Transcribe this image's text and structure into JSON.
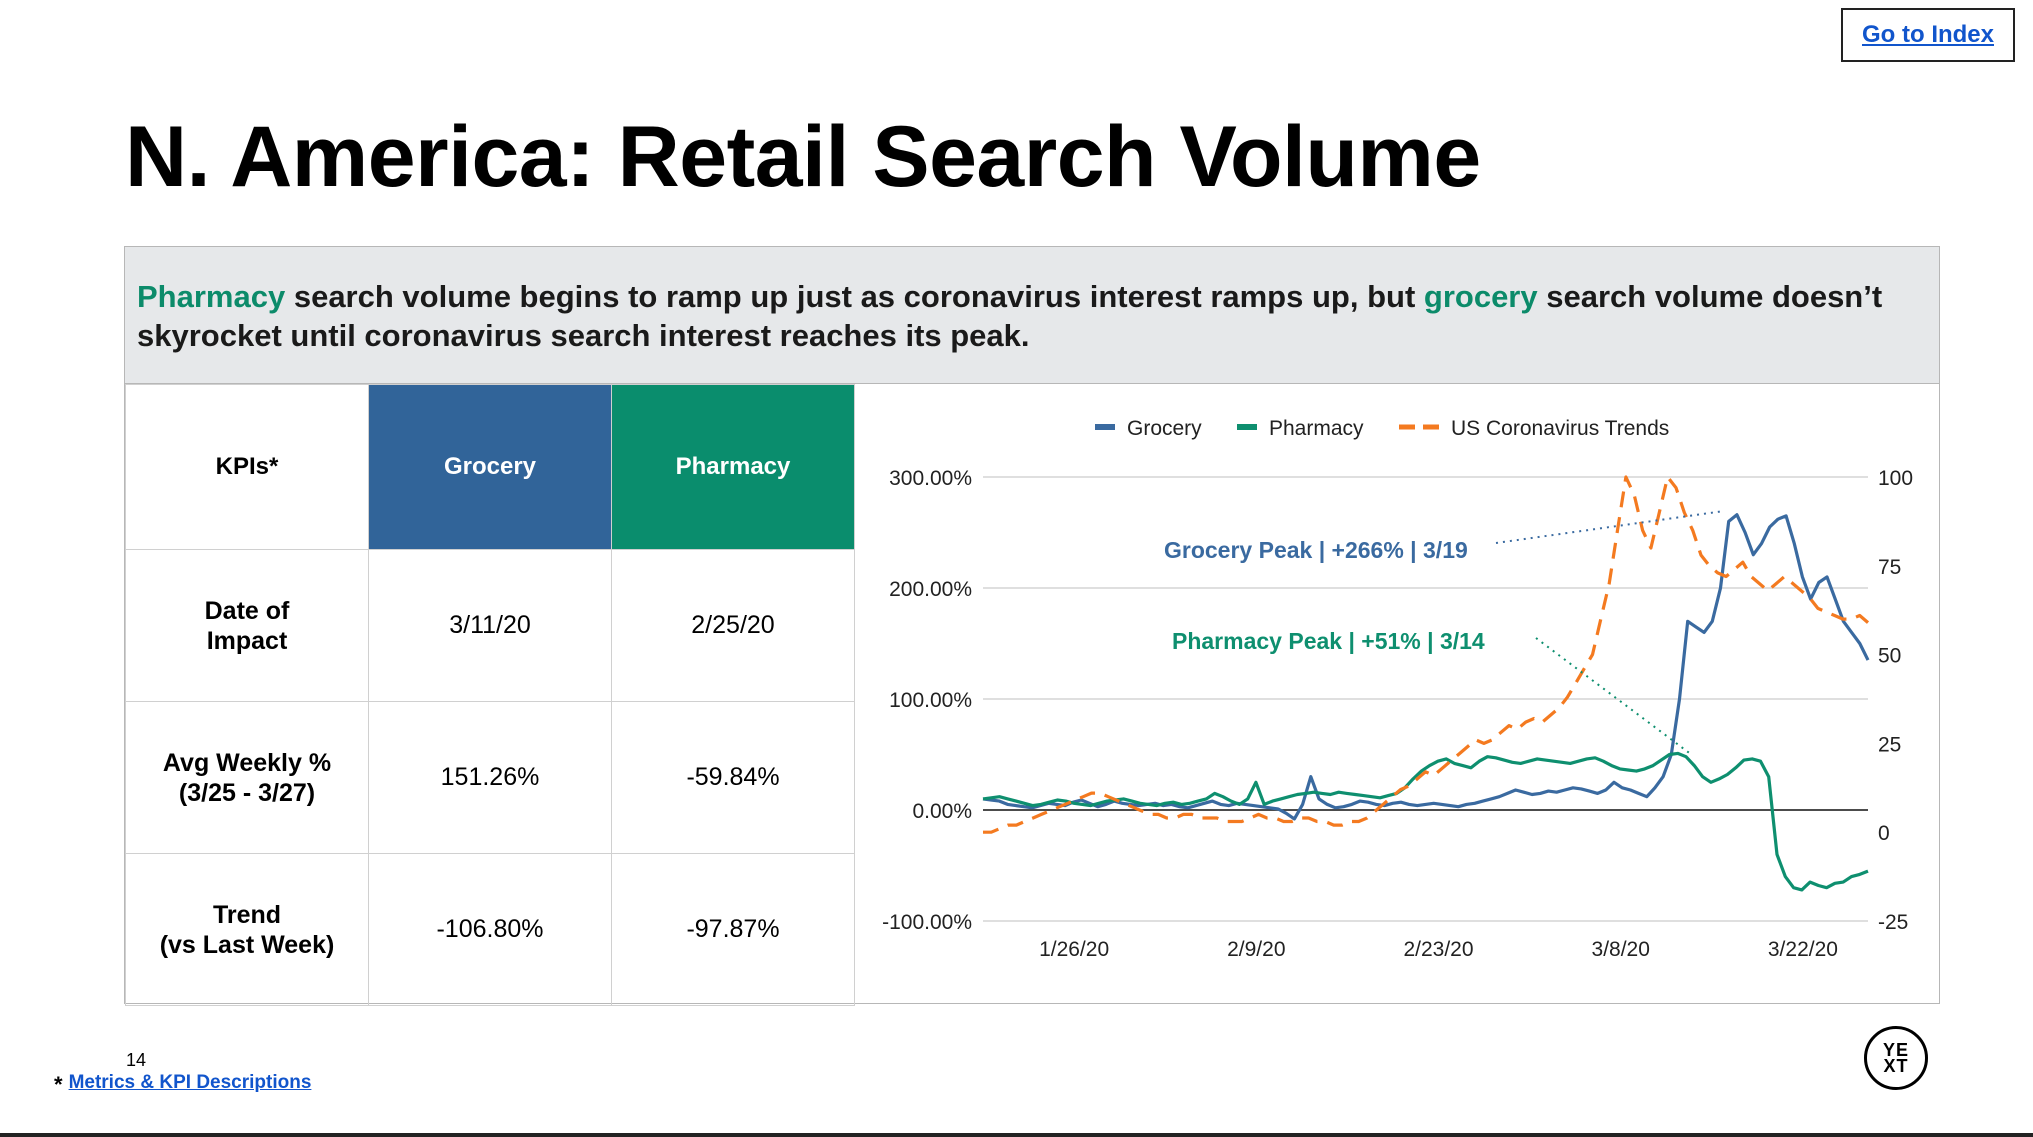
{
  "header": {
    "go_index": "Go to Index",
    "title": "N. America: Retail Search Volume"
  },
  "banner": {
    "part1": "Pharmacy",
    "part2": " search volume begins to ramp up just as coronavirus interest ramps up, but ",
    "part3": "grocery",
    "part4": " search volume doesn’t skyrocket until coronavirus search interest reaches its peak."
  },
  "kpi_table": {
    "headers": [
      "KPIs*",
      "Grocery",
      "Pharmacy"
    ],
    "rows": [
      {
        "label_line1": "Date of",
        "label_line2": "Impact",
        "grocery": "3/11/20",
        "pharmacy": "2/25/20"
      },
      {
        "label_line1": "Avg Weekly %",
        "label_line2": "(3/25 - 3/27)",
        "grocery": "151.26%",
        "pharmacy": "-59.84%"
      },
      {
        "label_line1": "Trend",
        "label_line2": "(vs Last Week)",
        "grocery": "-106.80%",
        "pharmacy": "-97.87%"
      }
    ]
  },
  "colors": {
    "grocery": "#3a6aa0",
    "pharmacy": "#0e8f6f",
    "trends": "#f47a20",
    "banner_bg": "#e6e8ea"
  },
  "chart_data": {
    "type": "line",
    "x_ticks": [
      "1/26/20",
      "2/9/20",
      "2/23/20",
      "3/8/20",
      "3/22/20"
    ],
    "x_range": [
      "1/19/20",
      "3/27/20"
    ],
    "y_left": {
      "ticks": [
        "300.00%",
        "200.00%",
        "100.00%",
        "0.00%",
        "-100.00%"
      ],
      "range": [
        -100,
        300
      ]
    },
    "y_right": {
      "ticks": [
        "100",
        "75",
        "50",
        "25",
        "0",
        "-25"
      ],
      "range": [
        -25,
        100
      ]
    },
    "legend": [
      "Grocery",
      "Pharmacy",
      "US Coronavirus Trends"
    ],
    "legend_position": "top",
    "grid": true,
    "annotations": [
      "Grocery Peak | +266% | 3/19",
      "Pharmacy Peak | +51% | 3/14"
    ],
    "series": [
      {
        "name": "Grocery",
        "axis": "left",
        "style": "solid",
        "values": [
          10,
          9,
          8,
          5,
          4,
          3,
          2,
          4,
          6,
          5,
          4,
          7,
          9,
          6,
          3,
          5,
          8,
          6,
          5,
          4,
          5,
          6,
          4,
          5,
          3,
          2,
          4,
          6,
          8,
          5,
          4,
          6,
          5,
          4,
          3,
          2,
          1,
          -3,
          -8,
          5,
          30,
          10,
          5,
          2,
          3,
          5,
          8,
          7,
          5,
          4,
          6,
          7,
          5,
          4,
          5,
          6,
          5,
          4,
          3,
          5,
          6,
          8,
          10,
          12,
          15,
          18,
          16,
          14,
          15,
          17,
          16,
          18,
          20,
          19,
          17,
          15,
          18,
          25,
          20,
          18,
          15,
          12,
          20,
          30,
          50,
          100,
          170,
          165,
          160,
          170,
          200,
          260,
          266,
          250,
          230,
          240,
          255,
          262,
          265,
          240,
          210,
          190,
          205,
          210,
          190,
          170,
          160,
          150,
          135
        ]
      },
      {
        "name": "Pharmacy",
        "axis": "left",
        "style": "solid",
        "values": [
          10,
          11,
          12,
          10,
          8,
          6,
          4,
          5,
          7,
          9,
          8,
          6,
          5,
          4,
          6,
          8,
          9,
          10,
          8,
          6,
          5,
          4,
          6,
          7,
          5,
          6,
          8,
          10,
          15,
          12,
          8,
          5,
          10,
          25,
          5,
          8,
          10,
          12,
          14,
          15,
          16,
          15,
          14,
          16,
          15,
          14,
          13,
          12,
          11,
          13,
          15,
          20,
          28,
          35,
          40,
          44,
          46,
          42,
          40,
          38,
          44,
          48,
          47,
          45,
          43,
          42,
          44,
          46,
          45,
          44,
          43,
          42,
          44,
          46,
          47,
          44,
          40,
          37,
          36,
          35,
          37,
          40,
          45,
          50,
          51,
          48,
          40,
          30,
          25,
          28,
          32,
          38,
          45,
          46,
          44,
          30,
          -40,
          -60,
          -70,
          -72,
          -65,
          -68,
          -70,
          -66,
          -65,
          -60,
          -58,
          -55
        ]
      },
      {
        "name": "US Coronavirus Trends",
        "axis": "right",
        "style": "dashed",
        "values": [
          0,
          0,
          1,
          2,
          2,
          3,
          4,
          5,
          6,
          7,
          8,
          9,
          10,
          11,
          11,
          10,
          9,
          8,
          7,
          6,
          5,
          5,
          4,
          4,
          5,
          5,
          4,
          4,
          4,
          3,
          3,
          3,
          4,
          5,
          4,
          4,
          3,
          3,
          4,
          4,
          3,
          3,
          2,
          2,
          3,
          3,
          4,
          6,
          8,
          10,
          12,
          13,
          15,
          17,
          16,
          18,
          20,
          22,
          24,
          26,
          25,
          26,
          28,
          30,
          29,
          31,
          32,
          31,
          33,
          35,
          38,
          42,
          46,
          50,
          60,
          70,
          85,
          100,
          95,
          85,
          80,
          90,
          100,
          97,
          90,
          85,
          78,
          75,
          73,
          72,
          74,
          76,
          72,
          70,
          68,
          70,
          72,
          70,
          68,
          66,
          63,
          62,
          61,
          60,
          60,
          61,
          59
        ]
      }
    ]
  },
  "footer": {
    "page_number": "14",
    "footnote_star": "*",
    "footnote_link": "Metrics & KPI Descriptions",
    "logo_line1": "YE",
    "logo_line2": "XT"
  }
}
